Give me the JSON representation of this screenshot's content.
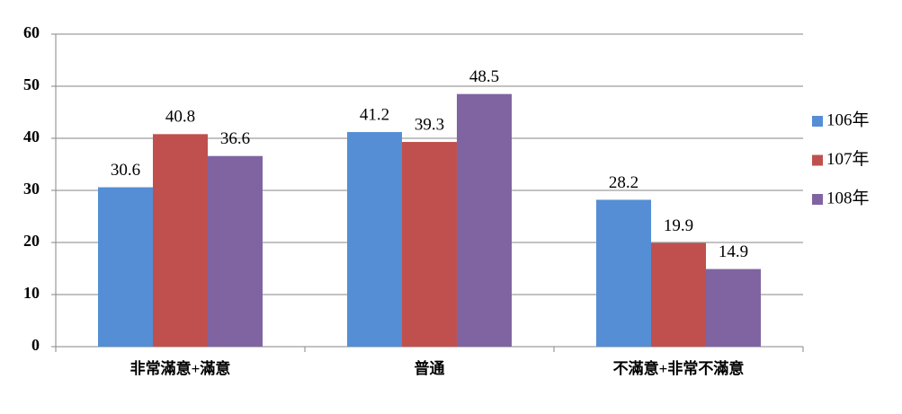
{
  "chart_data": {
    "type": "bar",
    "categories": [
      "非常滿意+滿意",
      "普通",
      "不滿意+非常不滿意"
    ],
    "series": [
      {
        "name": "106年",
        "color": "#558ed5",
        "values": [
          30.6,
          41.2,
          28.2
        ]
      },
      {
        "name": "107年",
        "color": "#c0504d",
        "values": [
          40.8,
          39.3,
          19.9
        ]
      },
      {
        "name": "108年",
        "color": "#8064a2",
        "values": [
          36.6,
          48.5,
          14.9
        ]
      }
    ],
    "ylim": [
      0,
      60
    ],
    "yticks": [
      0,
      10,
      20,
      30,
      40,
      50,
      60
    ],
    "grid": true,
    "legend": "right"
  }
}
